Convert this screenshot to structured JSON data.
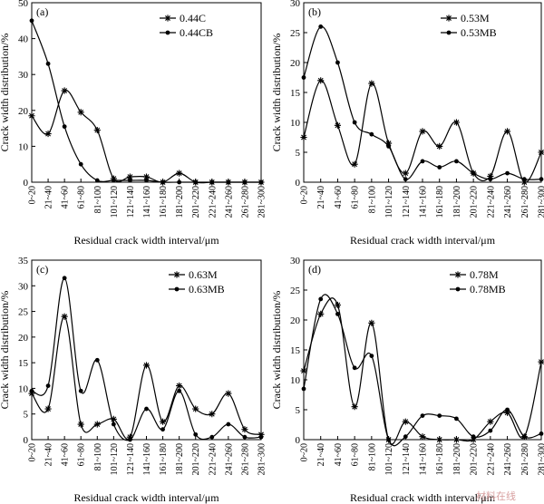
{
  "x_categories": [
    "0~20",
    "21~40",
    "41~60",
    "61~80",
    "81~100",
    "101~120",
    "121~140",
    "141~160",
    "161~180",
    "181~200",
    "201~220",
    "221~240",
    "241~260",
    "261~280",
    "281~300"
  ],
  "watermark": "材料在线",
  "chart_data": [
    {
      "type": "line",
      "panel_label": "(a)",
      "xlabel": "Residual crack width interval/μm",
      "ylabel": "Crack width distribution/%",
      "ylim": [
        0,
        50
      ],
      "yticks": [
        0,
        10,
        20,
        30,
        40,
        50
      ],
      "series": [
        {
          "name": "0.44C",
          "marker": "star",
          "values": [
            18.5,
            13.5,
            25.5,
            19.5,
            14.5,
            1.0,
            1.5,
            1.5,
            0.0,
            2.5,
            0.0,
            0.0,
            0.0,
            0.0,
            0.0
          ]
        },
        {
          "name": "0.44CB",
          "marker": "dot",
          "values": [
            45.0,
            33.0,
            15.5,
            5.0,
            0.5,
            0.5,
            0.5,
            0.5,
            0.0,
            0.0,
            0.0,
            0.0,
            0.0,
            0.0,
            0.0
          ]
        }
      ]
    },
    {
      "type": "line",
      "panel_label": "(b)",
      "xlabel": "Residual crack width interval/μm",
      "ylabel": "Crack width distribution/%",
      "ylim": [
        0,
        30
      ],
      "yticks": [
        0,
        5,
        10,
        15,
        20,
        25,
        30
      ],
      "series": [
        {
          "name": "0.53M",
          "marker": "star",
          "values": [
            7.5,
            17.0,
            9.5,
            3.0,
            16.5,
            6.5,
            1.5,
            8.5,
            6.0,
            10.0,
            1.5,
            1.0,
            8.5,
            0.0,
            5.0
          ]
        },
        {
          "name": "0.53MB",
          "marker": "dot",
          "values": [
            17.5,
            26.0,
            20.0,
            10.0,
            8.0,
            6.0,
            0.5,
            3.5,
            2.5,
            3.5,
            1.5,
            0.5,
            1.5,
            0.5,
            0.5
          ]
        }
      ]
    },
    {
      "type": "line",
      "panel_label": "(c)",
      "xlabel": "Residual crack width interval/μm",
      "ylabel": "Crack width distribution/%",
      "ylim": [
        0,
        35
      ],
      "yticks": [
        0,
        5,
        10,
        15,
        20,
        25,
        30,
        35
      ],
      "series": [
        {
          "name": "0.63M",
          "marker": "star",
          "values": [
            9.0,
            6.0,
            24.0,
            3.0,
            3.0,
            4.0,
            0.5,
            14.5,
            3.5,
            10.5,
            6.0,
            5.0,
            9.0,
            2.0,
            1.0
          ]
        },
        {
          "name": "0.63MB",
          "marker": "dot",
          "values": [
            9.5,
            10.5,
            31.5,
            9.5,
            15.5,
            3.0,
            0.0,
            6.0,
            2.0,
            9.5,
            1.0,
            0.5,
            3.0,
            0.5,
            0.5
          ]
        }
      ]
    },
    {
      "type": "line",
      "panel_label": "(d)",
      "xlabel": "Residual crack width interval/μm",
      "ylabel": "Crack width distribution/%",
      "ylim": [
        0,
        30
      ],
      "yticks": [
        0,
        5,
        10,
        15,
        20,
        25,
        30
      ],
      "series": [
        {
          "name": "0.78M",
          "marker": "star",
          "values": [
            11.5,
            21.0,
            22.5,
            5.5,
            19.5,
            0.0,
            3.0,
            0.5,
            0.0,
            0.0,
            0.0,
            3.0,
            4.5,
            0.5,
            13.0
          ]
        },
        {
          "name": "0.78MB",
          "marker": "dot",
          "values": [
            8.5,
            23.5,
            21.0,
            12.0,
            14.0,
            0.0,
            0.5,
            4.0,
            4.0,
            3.5,
            0.5,
            1.5,
            5.0,
            0.5,
            1.0
          ]
        }
      ]
    }
  ]
}
